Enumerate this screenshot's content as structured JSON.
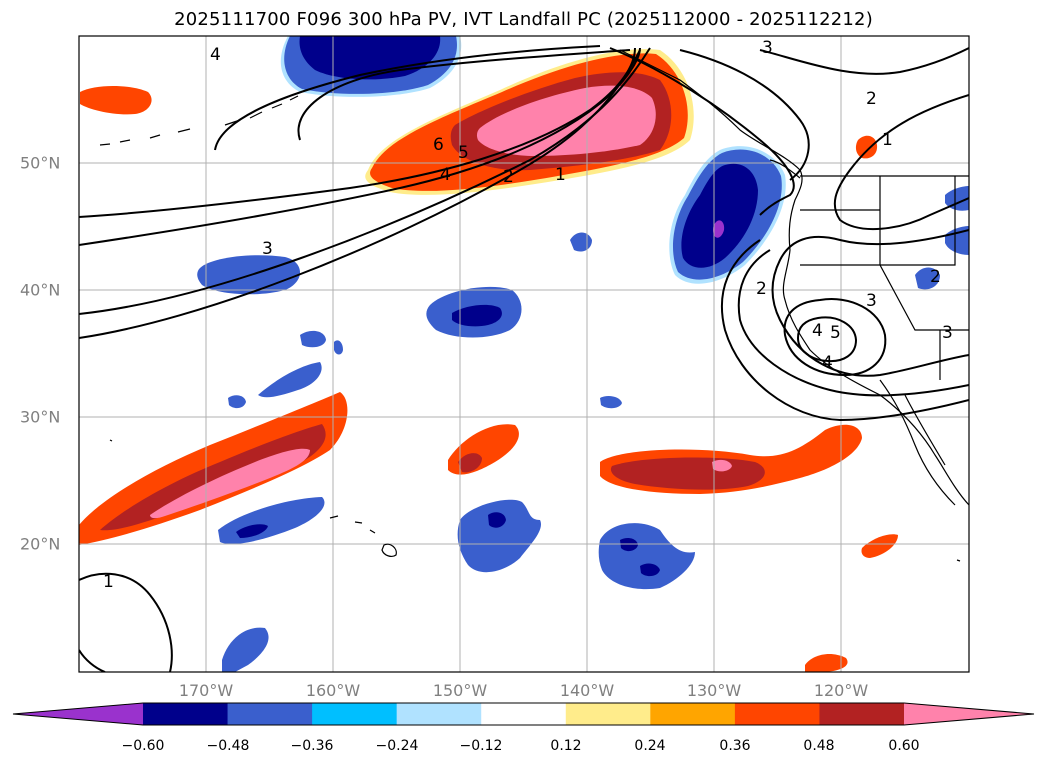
{
  "title": "2025111700 F096 300 hPa PV, IVT Landfall PC (2025112000 - 2025112212)",
  "longitude_labels": [
    "170°W",
    "160°W",
    "150°W",
    "140°W",
    "130°W",
    "120°W"
  ],
  "latitude_labels": [
    "50°N",
    "40°N",
    "30°N",
    "20°N"
  ],
  "colorbar": {
    "ticks": [
      "−0.60",
      "−0.48",
      "−0.36",
      "−0.24",
      "−0.12",
      "0.12",
      "0.24",
      "0.36",
      "0.48",
      "0.60"
    ],
    "colors": [
      "#9a32cd",
      "#00008b",
      "#3a5fcd",
      "#00bfff",
      "#b0e2ff",
      "#ffffff",
      "#ffec8b",
      "#ffa500",
      "#ff4500",
      "#b22222",
      "#ff82ab"
    ]
  },
  "contour_labels": [
    "6",
    "5",
    "4",
    "2",
    "1",
    "3",
    "3",
    "2",
    "3",
    "2",
    "1",
    "4",
    "5",
    "3",
    "2",
    "4",
    "1",
    "4"
  ],
  "colors": {
    "coast": "#000000",
    "grid": "#b0b0b0",
    "axis_label": "#808080"
  }
}
